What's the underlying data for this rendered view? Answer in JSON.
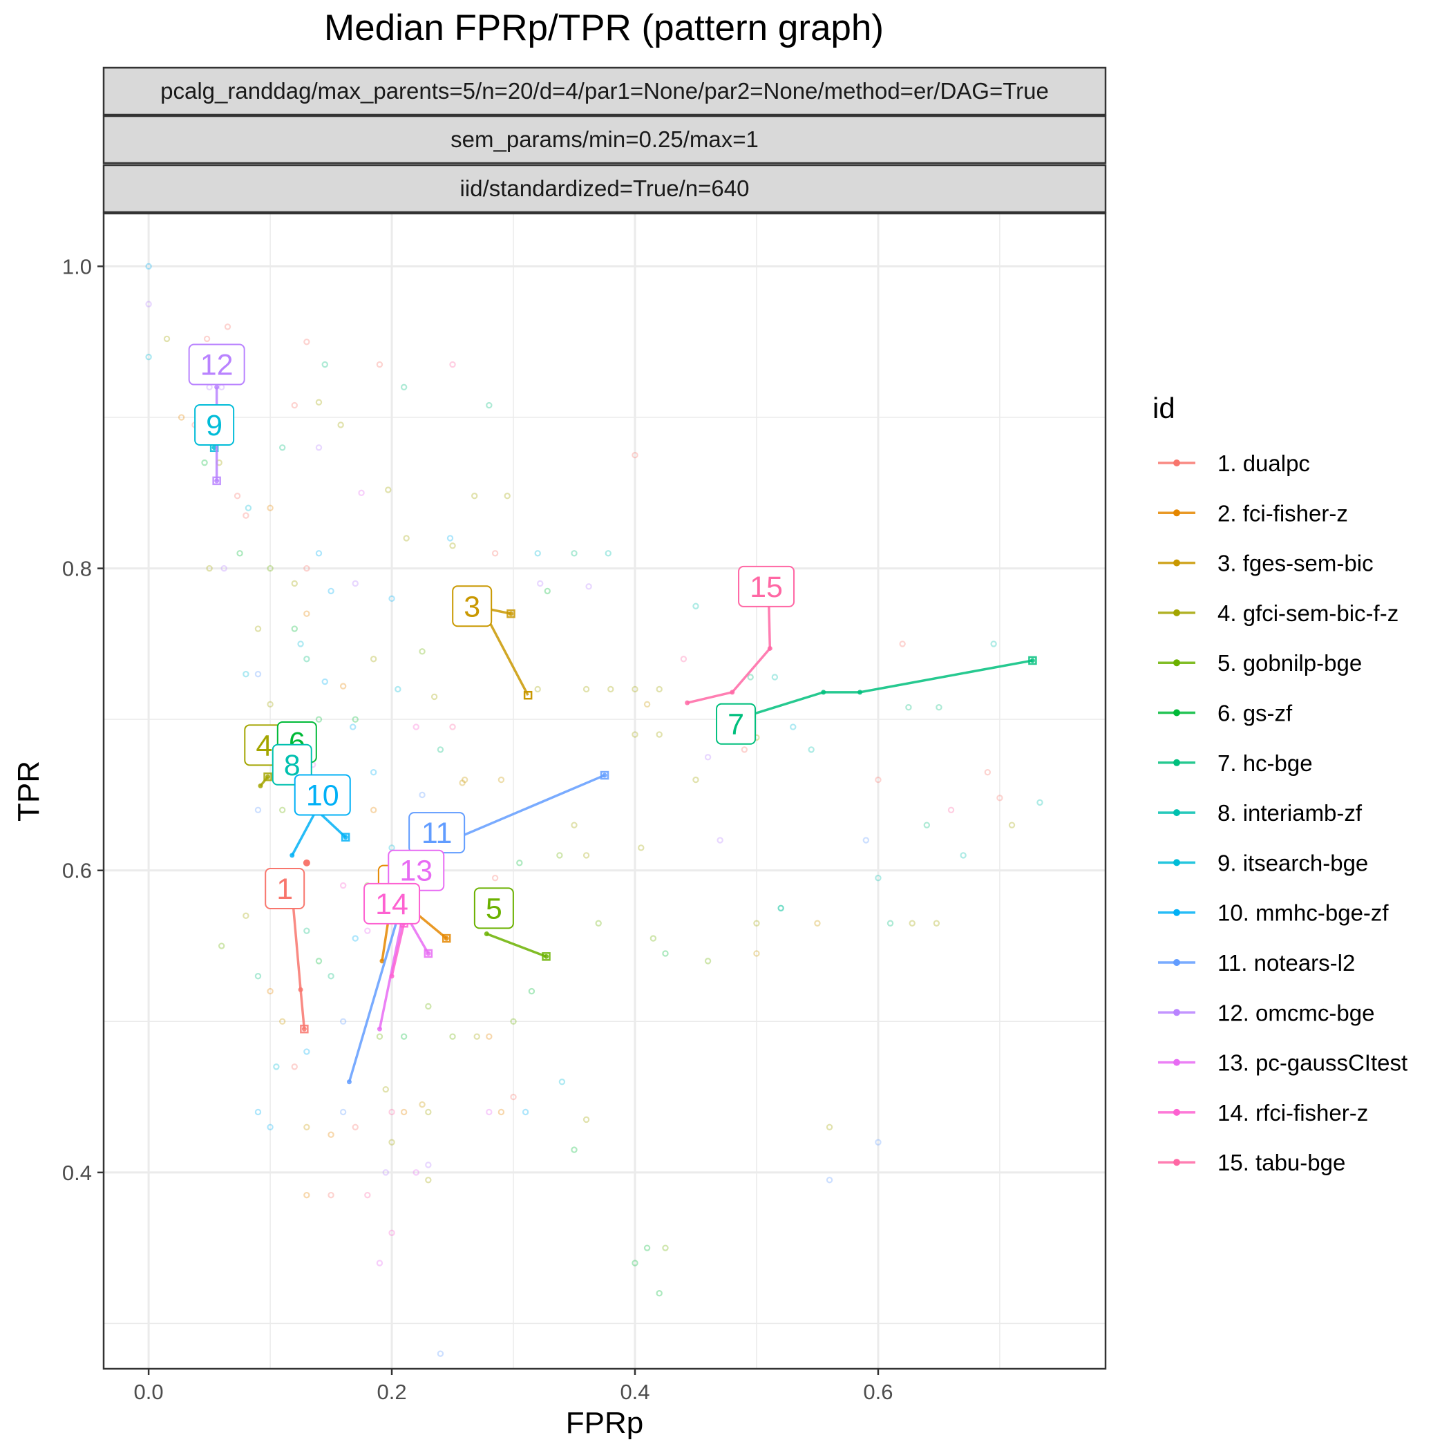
{
  "chart_data": {
    "type": "line",
    "title": "Median FPRp/TPR (pattern graph)",
    "facet_strips": [
      "pcalg_randdag/max_parents=5/n=20/d=4/par1=None/par2=None/method=er/DAG=True",
      "sem_params/min=0.25/max=1",
      "iid/standardized=True/n=640"
    ],
    "xlabel": "FPRp",
    "ylabel": "TPR",
    "xlim": [
      -0.037,
      0.787
    ],
    "ylim": [
      0.27,
      1.035
    ],
    "x_ticks": [
      0.0,
      0.2,
      0.4,
      0.6
    ],
    "x_tick_labels": [
      "0.0",
      "0.2",
      "0.4",
      "0.6"
    ],
    "y_ticks": [
      0.4,
      0.6,
      0.8,
      1.0
    ],
    "y_tick_labels": [
      "0.4",
      "0.6",
      "0.8",
      "1.0"
    ],
    "x_minor": [
      0.1,
      0.3,
      0.5,
      0.7
    ],
    "y_minor": [
      0.3,
      0.5,
      0.7,
      0.9
    ],
    "grid": true,
    "legend": {
      "title": "id",
      "position": "right"
    },
    "series": [
      {
        "name": "1. dualpc",
        "label": "1",
        "color": "#F8766D",
        "label_at": [
          0.112,
          0.588
        ],
        "points": [
          [
            0.118,
            0.585
          ],
          [
            0.125,
            0.521
          ],
          [
            0.128,
            0.495
          ]
        ],
        "end": [
          0.13,
          0.605
        ]
      },
      {
        "name": "2. fci-fisher-z",
        "label": "2",
        "color": "#E58700",
        "label_at": [
          0.205,
          0.59
        ],
        "points": [
          [
            0.192,
            0.54
          ],
          [
            0.2,
            0.582
          ],
          [
            0.215,
            0.575
          ],
          [
            0.245,
            0.555
          ]
        ]
      },
      {
        "name": "3. fges-sem-bic",
        "label": "3",
        "color": "#C99800",
        "label_at": [
          0.266,
          0.775
        ],
        "points": [
          [
            0.28,
            0.773
          ],
          [
            0.298,
            0.77
          ]
        ],
        "branch": [
          [
            0.28,
            0.765
          ],
          [
            0.312,
            0.716
          ]
        ]
      },
      {
        "name": "4. gfci-sem-bic-f-z",
        "label": "4",
        "color": "#A3A500",
        "label_at": [
          0.095,
          0.683
        ],
        "points": [
          [
            0.092,
            0.656
          ],
          [
            0.098,
            0.662
          ]
        ]
      },
      {
        "name": "5. gobnilp-bge",
        "label": "5",
        "color": "#6BB100",
        "label_at": [
          0.284,
          0.575
        ],
        "points": [
          [
            0.278,
            0.558
          ],
          [
            0.327,
            0.543
          ]
        ]
      },
      {
        "name": "6. gs-zf",
        "label": "6",
        "color": "#00BA38",
        "label_at": [
          0.122,
          0.685
        ],
        "points": [
          [
            0.118,
            0.67
          ]
        ]
      },
      {
        "name": "7. hc-bge",
        "label": "7",
        "color": "#00BF7D",
        "label_at": [
          0.483,
          0.697
        ],
        "points": [
          [
            0.483,
            0.7
          ],
          [
            0.555,
            0.718
          ],
          [
            0.585,
            0.718
          ],
          [
            0.727,
            0.739
          ]
        ]
      },
      {
        "name": "8. interiamb-zf",
        "label": "8",
        "color": "#00C0AF",
        "label_at": [
          0.118,
          0.67
        ],
        "points": [
          [
            0.118,
            0.662
          ]
        ]
      },
      {
        "name": "9. itsearch-bge",
        "label": "9",
        "color": "#00BCD8",
        "label_at": [
          0.054,
          0.895
        ],
        "points": [
          [
            0.054,
            0.88
          ]
        ]
      },
      {
        "name": "10. mmhc-bge-zf",
        "label": "10",
        "color": "#00B0F6",
        "label_at": [
          0.143,
          0.65
        ],
        "points": [
          [
            0.118,
            0.61
          ],
          [
            0.138,
            0.64
          ],
          [
            0.162,
            0.622
          ]
        ]
      },
      {
        "name": "11. notears-l2",
        "label": "11",
        "color": "#619CFF",
        "label_at": [
          0.237,
          0.625
        ],
        "points": [
          [
            0.165,
            0.46
          ],
          [
            0.22,
            0.61
          ],
          [
            0.375,
            0.663
          ]
        ]
      },
      {
        "name": "12. omcmc-bge",
        "label": "12",
        "color": "#B983FF",
        "label_at": [
          0.056,
          0.935
        ],
        "points": [
          [
            0.056,
            0.92
          ],
          [
            0.056,
            0.858
          ]
        ]
      },
      {
        "name": "13. pc-gaussCItest",
        "label": "13",
        "color": "#E76BF3",
        "label_at": [
          0.22,
          0.6
        ],
        "points": [
          [
            0.19,
            0.495
          ],
          [
            0.21,
            0.573
          ],
          [
            0.23,
            0.545
          ]
        ]
      },
      {
        "name": "14. rfci-fisher-z",
        "label": "14",
        "color": "#FD61D1",
        "label_at": [
          0.2,
          0.578
        ],
        "points": [
          [
            0.2,
            0.53
          ],
          [
            0.21,
            0.565
          ]
        ]
      },
      {
        "name": "15. tabu-bge",
        "label": "15",
        "color": "#FF67A4",
        "label_at": [
          0.508,
          0.788
        ],
        "points": [
          [
            0.443,
            0.711
          ],
          [
            0.48,
            0.718
          ],
          [
            0.511,
            0.747
          ],
          [
            0.51,
            0.78
          ]
        ]
      }
    ],
    "scatter": [
      [
        0,
        1.0,
        9
      ],
      [
        0,
        0.94,
        8
      ],
      [
        0,
        0.975,
        11
      ],
      [
        0.015,
        0.952,
        3
      ],
      [
        0.027,
        0.9,
        1
      ],
      [
        0.038,
        0.895,
        0
      ],
      [
        0.048,
        0.952,
        0
      ],
      [
        0.05,
        0.92,
        11
      ],
      [
        0.06,
        0.92,
        11
      ],
      [
        0.065,
        0.96,
        0
      ],
      [
        0.046,
        0.87,
        5
      ],
      [
        0.058,
        0.87,
        3
      ],
      [
        0.073,
        0.848,
        0
      ],
      [
        0.082,
        0.84,
        8
      ],
      [
        0.05,
        0.8,
        3
      ],
      [
        0.062,
        0.8,
        11
      ],
      [
        0.075,
        0.81,
        5
      ],
      [
        0.08,
        0.835,
        0
      ],
      [
        0.1,
        0.84,
        1
      ],
      [
        0.11,
        0.88,
        6
      ],
      [
        0.12,
        0.908,
        0
      ],
      [
        0.14,
        0.91,
        3
      ],
      [
        0.145,
        0.935,
        6
      ],
      [
        0.13,
        0.95,
        0
      ],
      [
        0.19,
        0.935,
        0
      ],
      [
        0.21,
        0.92,
        6
      ],
      [
        0.25,
        0.935,
        14
      ],
      [
        0.28,
        0.908,
        6
      ],
      [
        0.14,
        0.88,
        11
      ],
      [
        0.158,
        0.895,
        3
      ],
      [
        0.175,
        0.85,
        12
      ],
      [
        0.197,
        0.852,
        3
      ],
      [
        0.268,
        0.848,
        3
      ],
      [
        0.295,
        0.848,
        3
      ],
      [
        0.248,
        0.82,
        9
      ],
      [
        0.25,
        0.815,
        3
      ],
      [
        0.212,
        0.82,
        3
      ],
      [
        0.285,
        0.81,
        0
      ],
      [
        0.32,
        0.81,
        8
      ],
      [
        0.35,
        0.81,
        6
      ],
      [
        0.378,
        0.81,
        7
      ],
      [
        0.328,
        0.785,
        5
      ],
      [
        0.322,
        0.79,
        11
      ],
      [
        0.362,
        0.788,
        11
      ],
      [
        0.45,
        0.775,
        7
      ],
      [
        0.495,
        0.728,
        6
      ],
      [
        0.515,
        0.728,
        7
      ],
      [
        0.53,
        0.695,
        8
      ],
      [
        0.545,
        0.68,
        7
      ],
      [
        0.625,
        0.708,
        6
      ],
      [
        0.65,
        0.708,
        6
      ],
      [
        0.695,
        0.75,
        7
      ],
      [
        0.733,
        0.645,
        7
      ],
      [
        0.71,
        0.63,
        3
      ],
      [
        0.12,
        0.76,
        5
      ],
      [
        0.13,
        0.74,
        6
      ],
      [
        0.125,
        0.75,
        8
      ],
      [
        0.145,
        0.725,
        9
      ],
      [
        0.16,
        0.722,
        1
      ],
      [
        0.17,
        0.7,
        5
      ],
      [
        0.185,
        0.74,
        3
      ],
      [
        0.205,
        0.72,
        8
      ],
      [
        0.225,
        0.745,
        4
      ],
      [
        0.235,
        0.715,
        3
      ],
      [
        0.22,
        0.695,
        13
      ],
      [
        0.25,
        0.695,
        14
      ],
      [
        0.24,
        0.68,
        6
      ],
      [
        0.08,
        0.73,
        8
      ],
      [
        0.09,
        0.73,
        10
      ],
      [
        0.1,
        0.71,
        3
      ],
      [
        0.11,
        0.685,
        10
      ],
      [
        0.09,
        0.64,
        10
      ],
      [
        0.11,
        0.64,
        4
      ],
      [
        0.14,
        0.7,
        5
      ],
      [
        0.135,
        0.67,
        12
      ],
      [
        0.168,
        0.695,
        9
      ],
      [
        0.185,
        0.665,
        9
      ],
      [
        0.185,
        0.64,
        1
      ],
      [
        0.2,
        0.615,
        8
      ],
      [
        0.225,
        0.65,
        10
      ],
      [
        0.258,
        0.658,
        2
      ],
      [
        0.26,
        0.66,
        2
      ],
      [
        0.29,
        0.66,
        2
      ],
      [
        0.35,
        0.63,
        3
      ],
      [
        0.36,
        0.61,
        3
      ],
      [
        0.338,
        0.61,
        4
      ],
      [
        0.285,
        0.595,
        0
      ],
      [
        0.305,
        0.605,
        5
      ],
      [
        0.21,
        0.59,
        12
      ],
      [
        0.16,
        0.59,
        13
      ],
      [
        0.18,
        0.59,
        4
      ],
      [
        0.17,
        0.555,
        9
      ],
      [
        0.18,
        0.56,
        12
      ],
      [
        0.13,
        0.56,
        6
      ],
      [
        0.14,
        0.54,
        5
      ],
      [
        0.15,
        0.53,
        6
      ],
      [
        0.16,
        0.5,
        10
      ],
      [
        0.19,
        0.49,
        4
      ],
      [
        0.21,
        0.49,
        5
      ],
      [
        0.23,
        0.51,
        4
      ],
      [
        0.25,
        0.49,
        4
      ],
      [
        0.27,
        0.49,
        3
      ],
      [
        0.28,
        0.49,
        1
      ],
      [
        0.3,
        0.5,
        4
      ],
      [
        0.315,
        0.52,
        5
      ],
      [
        0.3,
        0.45,
        0
      ],
      [
        0.31,
        0.44,
        9
      ],
      [
        0.34,
        0.46,
        8
      ],
      [
        0.36,
        0.435,
        3
      ],
      [
        0.35,
        0.415,
        5
      ],
      [
        0.37,
        0.565,
        4
      ],
      [
        0.415,
        0.555,
        4
      ],
      [
        0.425,
        0.545,
        5
      ],
      [
        0.46,
        0.54,
        4
      ],
      [
        0.52,
        0.575,
        6
      ],
      [
        0.55,
        0.565,
        2
      ],
      [
        0.6,
        0.595,
        7
      ],
      [
        0.61,
        0.565,
        6
      ],
      [
        0.628,
        0.565,
        3
      ],
      [
        0.648,
        0.565,
        3
      ],
      [
        0.6,
        0.42,
        10
      ],
      [
        0.56,
        0.395,
        10
      ],
      [
        0.56,
        0.43,
        3
      ],
      [
        0.41,
        0.35,
        5
      ],
      [
        0.425,
        0.35,
        4
      ],
      [
        0.4,
        0.34,
        5
      ],
      [
        0.42,
        0.32,
        5
      ],
      [
        0.24,
        0.28,
        10
      ],
      [
        0.19,
        0.34,
        12
      ],
      [
        0.2,
        0.36,
        13
      ],
      [
        0.22,
        0.4,
        12
      ],
      [
        0.23,
        0.405,
        11
      ],
      [
        0.195,
        0.4,
        11
      ],
      [
        0.2,
        0.42,
        3
      ],
      [
        0.13,
        0.385,
        1
      ],
      [
        0.15,
        0.385,
        0
      ],
      [
        0.18,
        0.385,
        14
      ],
      [
        0.23,
        0.395,
        3
      ],
      [
        0.28,
        0.44,
        12
      ],
      [
        0.29,
        0.44,
        1
      ],
      [
        0.16,
        0.44,
        10
      ],
      [
        0.1,
        0.43,
        9
      ],
      [
        0.09,
        0.44,
        9
      ],
      [
        0.13,
        0.43,
        2
      ],
      [
        0.15,
        0.425,
        1
      ],
      [
        0.17,
        0.43,
        0
      ],
      [
        0.195,
        0.455,
        3
      ],
      [
        0.2,
        0.44,
        14
      ],
      [
        0.21,
        0.44,
        1
      ],
      [
        0.225,
        0.445,
        2
      ],
      [
        0.23,
        0.44,
        3
      ],
      [
        0.08,
        0.57,
        3
      ],
      [
        0.06,
        0.55,
        4
      ],
      [
        0.09,
        0.53,
        6
      ],
      [
        0.1,
        0.52,
        1
      ],
      [
        0.11,
        0.5,
        2
      ],
      [
        0.12,
        0.47,
        0
      ],
      [
        0.13,
        0.48,
        9
      ],
      [
        0.105,
        0.47,
        8
      ],
      [
        0.4,
        0.875,
        0
      ],
      [
        0.44,
        0.74,
        14
      ],
      [
        0.4,
        0.72,
        3
      ],
      [
        0.42,
        0.72,
        3
      ],
      [
        0.41,
        0.71,
        2
      ],
      [
        0.32,
        0.72,
        3
      ],
      [
        0.38,
        0.72,
        3
      ],
      [
        0.36,
        0.72,
        3
      ],
      [
        0.46,
        0.675,
        11
      ],
      [
        0.47,
        0.62,
        11
      ],
      [
        0.49,
        0.68,
        0
      ],
      [
        0.5,
        0.688,
        3
      ],
      [
        0.45,
        0.66,
        3
      ],
      [
        0.405,
        0.615,
        3
      ],
      [
        0.4,
        0.69,
        3
      ],
      [
        0.42,
        0.69,
        3
      ],
      [
        0.59,
        0.62,
        10
      ],
      [
        0.6,
        0.66,
        0
      ],
      [
        0.62,
        0.75,
        0
      ],
      [
        0.66,
        0.64,
        14
      ],
      [
        0.67,
        0.61,
        7
      ],
      [
        0.69,
        0.665,
        0
      ],
      [
        0.7,
        0.648,
        0
      ],
      [
        0.64,
        0.63,
        6
      ],
      [
        0.5,
        0.565,
        3
      ],
      [
        0.5,
        0.545,
        2
      ],
      [
        0.52,
        0.575,
        7
      ],
      [
        0.2,
        0.78,
        9
      ],
      [
        0.17,
        0.79,
        11
      ],
      [
        0.15,
        0.785,
        9
      ],
      [
        0.13,
        0.77,
        1
      ],
      [
        0.12,
        0.79,
        3
      ],
      [
        0.1,
        0.8,
        4
      ],
      [
        0.09,
        0.76,
        3
      ],
      [
        0.14,
        0.81,
        9
      ],
      [
        0.13,
        0.8,
        0
      ]
    ]
  }
}
